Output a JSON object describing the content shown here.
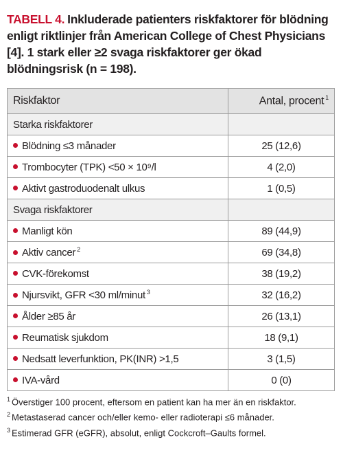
{
  "title": {
    "label": "TABELL 4.",
    "text": "Inkluderade patienters riskfaktorer för blödning enligt riktlinjer från American College of Chest Physicians [4]. 1 stark eller ≥2 svaga riskfakto­rer ger ökad blödningsrisk (n = 198)."
  },
  "table": {
    "header": [
      {
        "text": "Riskfaktor"
      },
      {
        "text": "Antal, procent",
        "note": "1"
      }
    ],
    "sections": [
      {
        "name": "Starka riskfaktorer",
        "rows": [
          {
            "label": "Blödning ≤3 månader",
            "value": "25 (12,6)"
          },
          {
            "label": "Trombocyter (TPK) <50 × 10⁹/l",
            "value": "4 (2,0)"
          },
          {
            "label": "Aktivt gastroduodenalt ulkus",
            "value": "1 (0,5)"
          }
        ]
      },
      {
        "name": "Svaga riskfaktorer",
        "rows": [
          {
            "label": "Manligt kön",
            "value": "89 (44,9)"
          },
          {
            "label": "Aktiv cancer",
            "note": "2",
            "value": "69 (34,8)"
          },
          {
            "label": "CVK-förekomst",
            "value": "38 (19,2)"
          },
          {
            "label": "Njursvikt, GFR <30 ml/minut",
            "note": "3",
            "value": "32 (16,2)"
          },
          {
            "label": "Ålder ≥85 år",
            "value": "26 (13,1)"
          },
          {
            "label": "Reumatisk sjukdom",
            "value": "18 (9,1)"
          },
          {
            "label": "Nedsatt leverfunktion, PK(INR) >1,5",
            "value": "3 (1,5)"
          },
          {
            "label": "IVA-vård",
            "value": "0 (0)"
          }
        ]
      }
    ]
  },
  "footnotes": [
    {
      "number": "1",
      "text": "Överstiger 100 procent, eftersom en patient kan ha mer än en riskfaktor."
    },
    {
      "number": "2",
      "text": "Metastaserad cancer och/eller kemo- eller radioterapi ≤6 månader."
    },
    {
      "number": "3",
      "text": "Estimerad GFR (eGFR), absolut, enligt Cockcroft–Gaults formel."
    }
  ]
}
